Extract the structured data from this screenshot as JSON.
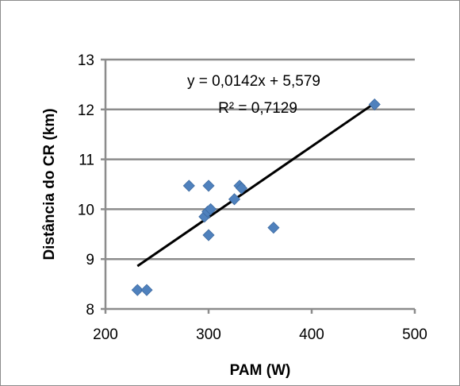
{
  "chart_data": {
    "type": "scatter",
    "title": "",
    "xlabel": "PAM (W)",
    "ylabel": "Distância do CR (km)",
    "xlim": [
      200,
      500
    ],
    "ylim": [
      8,
      13
    ],
    "x_ticks": [
      200,
      300,
      400,
      500
    ],
    "y_ticks": [
      8,
      9,
      10,
      11,
      12,
      13
    ],
    "x_tick_labels": [
      "200",
      "300",
      "400",
      "500"
    ],
    "y_tick_labels": [
      "8",
      "9",
      "10",
      "11",
      "12",
      "13"
    ],
    "grid": "horizontal",
    "legend": "none",
    "marker": "diamond",
    "marker_color": "#4f81bd",
    "trendline_color": "#000000",
    "series": [
      {
        "points": [
          {
            "x": 231,
            "y": 8.38
          },
          {
            "x": 240,
            "y": 8.38
          },
          {
            "x": 281,
            "y": 10.47
          },
          {
            "x": 296,
            "y": 9.85
          },
          {
            "x": 299,
            "y": 9.95
          },
          {
            "x": 300,
            "y": 10.47
          },
          {
            "x": 300,
            "y": 9.48
          },
          {
            "x": 302,
            "y": 10.0
          },
          {
            "x": 325,
            "y": 10.2
          },
          {
            "x": 330,
            "y": 10.47
          },
          {
            "x": 332,
            "y": 10.42
          },
          {
            "x": 363,
            "y": 9.63
          },
          {
            "x": 461,
            "y": 12.1
          }
        ]
      }
    ],
    "trendline": {
      "slope": 0.0142,
      "intercept": 5.579,
      "x_range": [
        231,
        461
      ],
      "equation_label": "y = 0,0142x + 5,579",
      "r2_label": "R² = 0,7129"
    }
  }
}
